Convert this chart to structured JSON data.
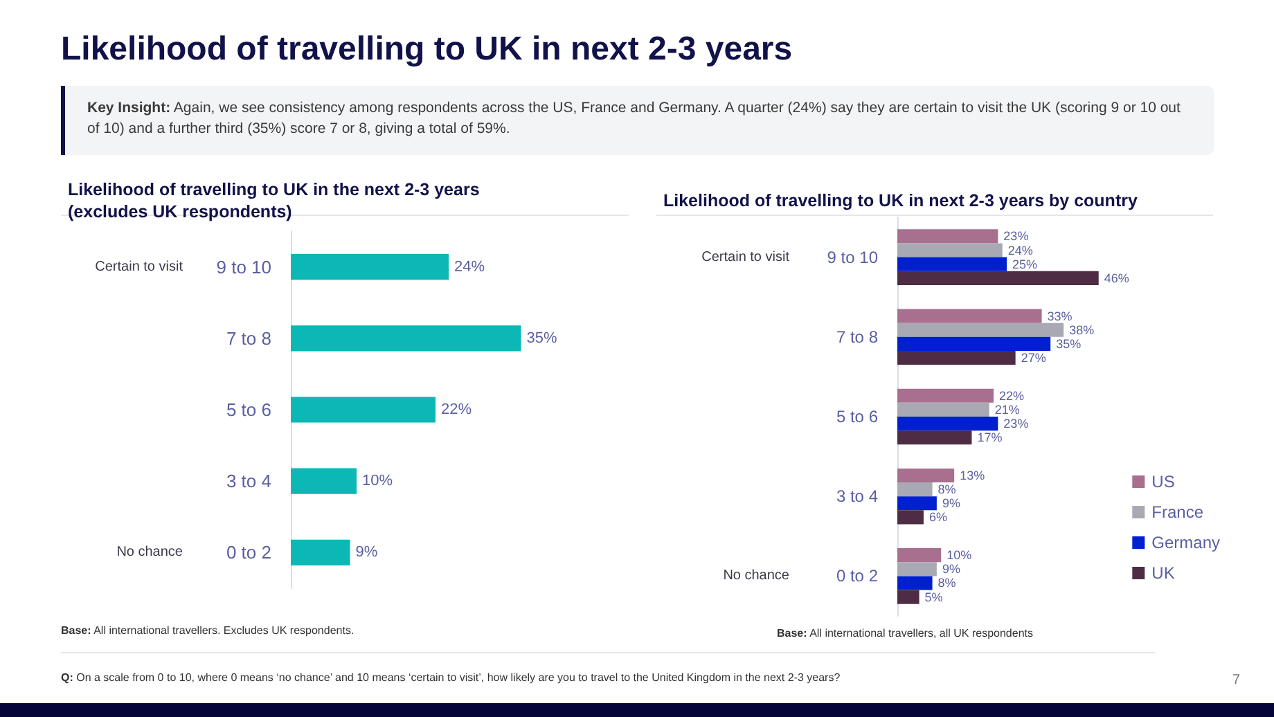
{
  "chart_data": [
    {
      "type": "bar",
      "orientation": "horizontal",
      "title": "Likelihood of travelling to UK in the next 2-3 years\n(excludes UK respondents)",
      "categories": [
        "9 to 10",
        "7 to 8",
        "5 to 6",
        "3 to 4",
        "0 to 2"
      ],
      "series": [
        {
          "color": "#0bb8b5",
          "values": [
            24,
            35,
            22,
            10,
            9
          ],
          "value_labels": [
            "24%",
            "35%",
            "22%",
            "10%",
            "9%"
          ]
        }
      ],
      "annotations": [
        "Likelihood of travelling to UK in next 2-3 years",
        "Key Insight: Again, we see consistency among respondents across the US, France and Germany. A quarter (24%) say they are certain to visit the UK (scoring 9 or 10 out of 10) and a further third (35%) score 7 or 8, giving a total of 59%.",
        "Certain to visit",
        "No chance",
        "Base: All international travellers. Excludes UK respondents.",
        "Q: On a scale from 0 to 10, where 0 means ‘no chance’ and 10 means ‘certain to visit’, how likely are you to travel to the United Kingdom in the next 2-3 years?",
        "7"
      ]
    },
    {
      "type": "bar",
      "orientation": "horizontal",
      "title": "Likelihood of travelling to UK in next 2-3 years by country",
      "categories": [
        "9 to 10",
        "7 to 8",
        "5 to 6",
        "3 to 4",
        "0 to 2"
      ],
      "legend": "bottom right",
      "series": [
        {
          "name": "US",
          "color": "#a86f8e",
          "values": [
            23,
            33,
            22,
            13,
            10
          ],
          "value_labels": [
            "23%",
            "33%",
            "22%",
            "13%",
            "10%"
          ]
        },
        {
          "name": "France",
          "color": "#a9a9b3",
          "values": [
            24,
            38,
            21,
            8,
            9
          ],
          "value_labels": [
            "24%",
            "38%",
            "21%",
            "8%",
            "9%"
          ]
        },
        {
          "name": "Germany",
          "color": "#0020d0",
          "values": [
            25,
            35,
            23,
            9,
            8
          ],
          "value_labels": [
            "25%",
            "35%",
            "23%",
            "9%",
            "8%"
          ]
        },
        {
          "name": "UK",
          "color": "#4e2c44",
          "values": [
            46,
            27,
            17,
            6,
            5
          ],
          "value_labels": [
            "46%",
            "27%",
            "17%",
            "6%",
            "5%"
          ]
        }
      ],
      "annotations": [
        "Certain to visit",
        "No chance",
        "Base: All international travellers, all UK respondents"
      ]
    }
  ]
}
